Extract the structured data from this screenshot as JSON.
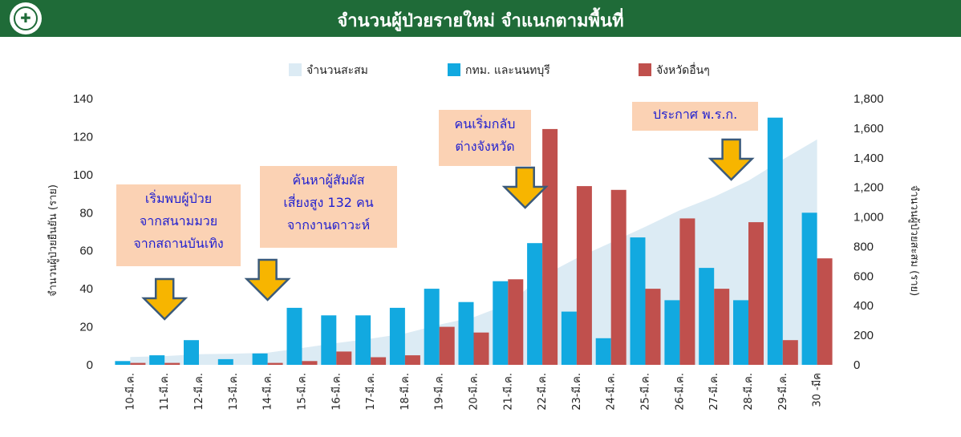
{
  "header": {
    "title": "จำนวนผู้ป่วยรายใหม่ จำแนกตามพื้นที่"
  },
  "colors": {
    "header_bg": "#1f6b38",
    "bkk": "#12a9e0",
    "other": "#c0504d",
    "cumulative": "#dcebf4",
    "arrow": "#f7b500",
    "annotation_text": "#1f1fd0",
    "annotation_bg": "#fbd2b4"
  },
  "logo": {
    "icon": "ministry-of-public-health-seal"
  },
  "annotations": [
    {
      "lines": [
        "เริ่มพบผู้ป่วย",
        "จากสนามมวย",
        "จากสถานบันเทิง"
      ]
    },
    {
      "lines": [
        "ค้นหาผู้สัมผัส",
        "เสี่ยงสูง 132 คน",
        "จากงานดาวะห์"
      ]
    },
    {
      "lines": [
        "คนเริ่มกลับ",
        "ต่างจังหวัด"
      ]
    },
    {
      "lines": [
        "ประกาศ พ.ร.ก."
      ]
    }
  ],
  "chart_data": {
    "type": "bar",
    "categories": [
      "10-มี.ค.",
      "11-มี.ค.",
      "12-มี.ค.",
      "13-มี.ค.",
      "14-มี.ค.",
      "15-มี.ค.",
      "16-มี.ค.",
      "17-มี.ค.",
      "18-มี.ค.",
      "19-มี.ค.",
      "20-มี.ค.",
      "21-มี.ค.",
      "22-มี.ค.",
      "23-มี.ค.",
      "24-มี.ค.",
      "25-มี.ค.",
      "26-มี.ค.",
      "27-มี.ค.",
      "28-มี.ค.",
      "29-มี.ค.",
      "30 -มีค"
    ],
    "series": [
      {
        "name": "จำนวนสะสม",
        "type": "area",
        "axis": "right",
        "values": [
          53,
          59,
          72,
          75,
          82,
          114,
          147,
          177,
          212,
          272,
          322,
          411,
          599,
          721,
          827,
          934,
          1045,
          1136,
          1245,
          1388,
          1524
        ]
      },
      {
        "name": "กทม. และนนทบุรี",
        "type": "bar",
        "axis": "left",
        "values": [
          2,
          5,
          13,
          3,
          6,
          30,
          26,
          26,
          30,
          40,
          33,
          44,
          64,
          28,
          14,
          67,
          34,
          51,
          34,
          130,
          80
        ]
      },
      {
        "name": "จังหวัดอื่นๆ",
        "type": "bar",
        "axis": "left",
        "values": [
          1,
          1,
          0,
          0,
          1,
          2,
          7,
          4,
          5,
          20,
          17,
          45,
          124,
          94,
          92,
          40,
          77,
          40,
          75,
          13,
          56
        ]
      }
    ],
    "ylabel": "จำนวนผู้ป่วยยืนยัน (ราย)",
    "y2label": "จำนวนผู้ป่วยสะสม (ราย)",
    "ylim": [
      0,
      140
    ],
    "yticks": [
      "0",
      "20",
      "40",
      "60",
      "80",
      "100",
      "120",
      "140"
    ],
    "y2lim": [
      0,
      1800
    ],
    "y2ticks": [
      "0",
      "200",
      "400",
      "600",
      "800",
      "1,000",
      "1,200",
      "1,400",
      "1,600",
      "1,800"
    ],
    "legend": "top",
    "grid": false
  }
}
